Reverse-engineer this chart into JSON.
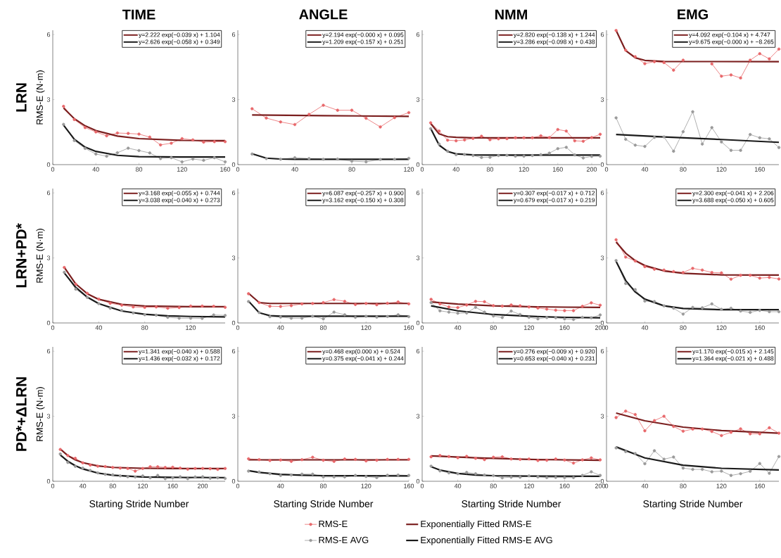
{
  "chart_data": [
    {
      "type": "line",
      "title": "TIME",
      "ylabel": "RMS-E (N·m)",
      "x": [
        10,
        20,
        30,
        40,
        50,
        60,
        70,
        80,
        90,
        100,
        110,
        120,
        130,
        140,
        150,
        160
      ],
      "xlim": [
        0,
        160
      ],
      "xticks": [
        0,
        40,
        80,
        120,
        160
      ],
      "ylim": [
        0,
        6.2
      ],
      "yticks": [
        0,
        3,
        6
      ],
      "annotations": [
        "y=2.222 exp(−0.039 x) + 1.104",
        "y=2.626 exp(−0.058 x) + 0.349",
        "LRN"
      ],
      "series": [
        {
          "color": "#e8686b",
          "marker": "circle",
          "values": [
            2.69,
            2.08,
            1.71,
            1.51,
            1.33,
            1.46,
            1.44,
            1.41,
            1.27,
            0.91,
            0.99,
            1.2,
            1.14,
            1.04,
            1.06,
            1.06
          ]
        },
        {
          "color": "#7b1f1f",
          "marker": "none",
          "x": [
            10,
            20,
            30,
            40,
            60,
            80,
            120,
            160
          ],
          "values": [
            2.61,
            2.12,
            1.79,
            1.57,
            1.32,
            1.2,
            1.12,
            1.11
          ]
        },
        {
          "color": "#9a9a9a",
          "marker": "circle",
          "values": [
            1.86,
            1.11,
            0.75,
            0.49,
            0.39,
            0.55,
            0.76,
            0.65,
            0.54,
            0.28,
            0.32,
            0.13,
            0.26,
            0.2,
            0.32,
            0.13
          ]
        },
        {
          "color": "#1a1a1a",
          "marker": "none",
          "x": [
            10,
            20,
            30,
            40,
            60,
            80,
            120,
            160
          ],
          "values": [
            1.82,
            1.17,
            0.81,
            0.61,
            0.43,
            0.37,
            0.35,
            0.35
          ]
        }
      ]
    },
    {
      "type": "line",
      "title": "ANGLE",
      "x": [
        10,
        20,
        30,
        40,
        50,
        60,
        70,
        80,
        90,
        100,
        110,
        120
      ],
      "xlim": [
        0,
        120
      ],
      "xticks": [
        0,
        40,
        80,
        120
      ],
      "ylim": [
        0,
        6.2
      ],
      "yticks": [
        0,
        3,
        6
      ],
      "annotations": [
        "y=2.194 exp(−0.000 x) + 0.095",
        "y=1.209 exp(−0.157 x) + 0.251"
      ],
      "series": [
        {
          "color": "#e8686b",
          "marker": "circle",
          "values": [
            2.58,
            2.15,
            1.97,
            1.85,
            2.32,
            2.74,
            2.51,
            2.51,
            2.14,
            1.74,
            2.17,
            2.4
          ]
        },
        {
          "color": "#7b1f1f",
          "marker": "none",
          "x": [
            10,
            60,
            120
          ],
          "values": [
            2.29,
            2.26,
            2.23
          ]
        },
        {
          "color": "#9a9a9a",
          "marker": "circle",
          "values": [
            0.49,
            0.28,
            0.25,
            0.32,
            0.28,
            0.25,
            0.26,
            0.16,
            0.13,
            0.24,
            0.25,
            0.29
          ]
        },
        {
          "color": "#1a1a1a",
          "marker": "none",
          "x": [
            10,
            20,
            30,
            40,
            120
          ],
          "values": [
            0.5,
            0.3,
            0.26,
            0.25,
            0.25
          ]
        }
      ]
    },
    {
      "type": "line",
      "title": "NMM",
      "x": [
        10,
        20,
        30,
        40,
        50,
        60,
        70,
        80,
        90,
        100,
        110,
        120,
        130,
        140,
        150,
        160,
        170,
        180,
        190,
        200,
        210
      ],
      "xlim": [
        0,
        210
      ],
      "xticks": [
        0,
        40,
        80,
        120,
        160,
        200
      ],
      "ylim": [
        0,
        6.2
      ],
      "yticks": [
        0,
        3,
        6
      ],
      "annotations": [
        "y=2.820 exp(−0.138 x) + 1.244",
        "y=3.286 exp(−0.098 x) + 0.438"
      ],
      "series": [
        {
          "color": "#e8686b",
          "marker": "circle",
          "values": [
            1.93,
            1.55,
            1.13,
            1.1,
            1.14,
            1.21,
            1.31,
            1.15,
            1.19,
            1.2,
            1.24,
            1.24,
            1.24,
            1.33,
            1.25,
            1.62,
            1.55,
            1.1,
            1.08,
            1.25,
            1.4
          ]
        },
        {
          "color": "#7b1f1f",
          "marker": "none",
          "x": [
            10,
            20,
            30,
            40,
            60,
            210
          ],
          "values": [
            1.9,
            1.42,
            1.29,
            1.26,
            1.24,
            1.24
          ]
        },
        {
          "color": "#9a9a9a",
          "marker": "circle",
          "values": [
            1.66,
            0.95,
            0.62,
            0.46,
            0.47,
            0.42,
            0.33,
            0.34,
            0.42,
            0.43,
            0.39,
            0.39,
            0.42,
            0.46,
            0.53,
            0.74,
            0.8,
            0.45,
            0.31,
            0.38,
            0.39
          ]
        },
        {
          "color": "#1a1a1a",
          "marker": "none",
          "x": [
            10,
            20,
            30,
            40,
            60,
            80,
            210
          ],
          "values": [
            1.67,
            0.9,
            0.61,
            0.5,
            0.45,
            0.44,
            0.44
          ]
        }
      ]
    },
    {
      "type": "line",
      "title": "EMG",
      "x": [
        10,
        20,
        30,
        40,
        50,
        60,
        70,
        80,
        90,
        100,
        110,
        120,
        130,
        140,
        150,
        160,
        170,
        180
      ],
      "xlim": [
        0,
        180
      ],
      "xticks": [
        0,
        40,
        80,
        120,
        160
      ],
      "ylim": [
        0,
        6.2
      ],
      "yticks": [
        0,
        3,
        6
      ],
      "annotations": [
        "y=4.092 exp(−0.104 x) + 4.747",
        "y=9.675 exp(−0.000 x) + −8.265"
      ],
      "series": [
        {
          "color": "#e8686b",
          "marker": "circle",
          "values": [
            6.19,
            5.28,
            4.98,
            4.66,
            4.75,
            4.71,
            4.36,
            4.82,
            null,
            null,
            4.65,
            4.08,
            4.14,
            4.0,
            4.82,
            5.12,
            4.88,
            5.33
          ]
        },
        {
          "color": "#7b1f1f",
          "marker": "none",
          "x": [
            10,
            20,
            30,
            40,
            60,
            180
          ],
          "values": [
            6.19,
            5.26,
            4.93,
            4.81,
            4.76,
            4.75
          ]
        },
        {
          "color": "#9a9a9a",
          "marker": "circle",
          "values": [
            2.16,
            1.17,
            0.9,
            0.84,
            1.26,
            1.28,
            0.62,
            1.52,
            2.44,
            0.95,
            1.71,
            1.05,
            0.66,
            0.66,
            1.39,
            1.24,
            1.19,
            0.79
          ]
        },
        {
          "color": "#1a1a1a",
          "marker": "none",
          "x": [
            10,
            60,
            120,
            180
          ],
          "values": [
            1.39,
            1.28,
            1.16,
            1.03
          ]
        }
      ]
    },
    {
      "type": "line",
      "ylabel": "RMS-E (N·m)",
      "x": [
        10,
        20,
        30,
        40,
        50,
        60,
        70,
        80,
        90,
        100,
        110,
        120,
        130,
        140,
        150
      ],
      "xlim": [
        0,
        150
      ],
      "xticks": [
        0,
        40,
        80,
        120
      ],
      "ylim": [
        0,
        6.2
      ],
      "yticks": [
        0,
        3,
        6
      ],
      "annotations": [
        "y=3.168 exp(−0.055 x) + 0.744",
        "y=3.038 exp(−0.040 x) + 0.273",
        "LRN+PD*"
      ],
      "series": [
        {
          "color": "#e8686b",
          "marker": "circle",
          "values": [
            2.56,
            1.79,
            1.37,
            1.1,
            0.91,
            0.82,
            0.74,
            0.72,
            0.74,
            0.68,
            0.71,
            0.78,
            0.78,
            0.77,
            0.72
          ]
        },
        {
          "color": "#7b1f1f",
          "marker": "none",
          "x": [
            10,
            20,
            30,
            40,
            60,
            80,
            120,
            150
          ],
          "values": [
            2.57,
            1.8,
            1.35,
            1.09,
            0.86,
            0.78,
            0.75,
            0.75
          ]
        },
        {
          "color": "#9a9a9a",
          "marker": "circle",
          "values": [
            2.34,
            1.56,
            1.18,
            0.89,
            0.68,
            0.58,
            0.46,
            0.38,
            0.36,
            0.26,
            0.22,
            0.22,
            0.21,
            0.37,
            0.35
          ]
        },
        {
          "color": "#1a1a1a",
          "marker": "none",
          "x": [
            10,
            20,
            30,
            40,
            60,
            80,
            100,
            120,
            150
          ],
          "values": [
            2.31,
            1.64,
            1.19,
            0.89,
            0.55,
            0.4,
            0.33,
            0.3,
            0.28
          ]
        }
      ]
    },
    {
      "type": "line",
      "x": [
        10,
        20,
        30,
        40,
        50,
        60,
        70,
        80,
        90,
        100,
        110,
        120,
        130,
        140,
        150,
        160
      ],
      "xlim": [
        0,
        160
      ],
      "xticks": [
        0,
        40,
        80,
        120,
        160
      ],
      "ylim": [
        0,
        6.2
      ],
      "yticks": [
        0,
        3,
        6
      ],
      "annotations": [
        "y=6.087 exp(−0.257 x) + 0.900",
        "y=3.162 exp(−0.150 x) + 0.308"
      ],
      "series": [
        {
          "color": "#e8686b",
          "marker": "circle",
          "values": [
            1.35,
            0.94,
            0.77,
            0.76,
            0.8,
            0.88,
            0.9,
            0.94,
            1.08,
            1.0,
            0.85,
            0.9,
            0.84,
            0.91,
            0.97,
            0.88
          ]
        },
        {
          "color": "#7b1f1f",
          "marker": "none",
          "x": [
            10,
            20,
            30,
            160
          ],
          "values": [
            1.37,
            0.94,
            0.9,
            0.9
          ]
        },
        {
          "color": "#9a9a9a",
          "marker": "circle",
          "values": [
            0.99,
            0.48,
            0.29,
            0.27,
            0.22,
            0.22,
            0.31,
            0.19,
            0.5,
            0.38,
            0.26,
            0.31,
            0.27,
            0.3,
            0.38,
            0.29
          ]
        },
        {
          "color": "#1a1a1a",
          "marker": "none",
          "x": [
            10,
            20,
            30,
            40,
            160
          ],
          "values": [
            1.01,
            0.47,
            0.34,
            0.31,
            0.31
          ]
        }
      ]
    },
    {
      "type": "line",
      "x": [
        10,
        20,
        30,
        40,
        50,
        60,
        70,
        80,
        90,
        100,
        110,
        120,
        130,
        140,
        150,
        160,
        170,
        180,
        190,
        200
      ],
      "xlim": [
        0,
        200
      ],
      "xticks": [
        0,
        40,
        80,
        120,
        160,
        200
      ],
      "ylim": [
        0,
        6.2
      ],
      "yticks": [
        0,
        3,
        6
      ],
      "annotations": [
        "y=0.307 exp(−0.017 x) + 0.712",
        "y=0.679 exp(−0.017 x) + 0.219"
      ],
      "series": [
        {
          "color": "#e8686b",
          "marker": "circle",
          "values": [
            1.09,
            0.88,
            0.74,
            0.71,
            0.83,
            1.0,
            0.98,
            0.8,
            0.78,
            0.83,
            0.79,
            0.74,
            0.69,
            0.64,
            0.59,
            0.57,
            0.57,
            0.77,
            0.93,
            0.82
          ]
        },
        {
          "color": "#7b1f1f",
          "marker": "none",
          "x": [
            10,
            40,
            80,
            120,
            160,
            200
          ],
          "values": [
            0.97,
            0.87,
            0.79,
            0.75,
            0.73,
            0.72
          ]
        },
        {
          "color": "#9a9a9a",
          "marker": "circle",
          "values": [
            0.94,
            0.56,
            0.5,
            0.45,
            0.46,
            0.72,
            0.5,
            0.32,
            0.25,
            0.55,
            0.39,
            0.26,
            0.19,
            0.25,
            0.24,
            0.19,
            0.16,
            0.26,
            0.24,
            0.37
          ]
        },
        {
          "color": "#1a1a1a",
          "marker": "none",
          "x": [
            10,
            40,
            80,
            120,
            160,
            200
          ],
          "values": [
            0.79,
            0.56,
            0.39,
            0.31,
            0.26,
            0.24
          ]
        }
      ]
    },
    {
      "type": "line",
      "x": [
        10,
        20,
        30,
        40,
        50,
        60,
        70,
        80,
        90,
        100,
        110,
        120,
        130,
        140,
        150,
        160,
        170,
        180
      ],
      "xlim": [
        0,
        180
      ],
      "xticks": [
        0,
        40,
        80,
        120,
        160
      ],
      "ylim": [
        0,
        6.2
      ],
      "yticks": [
        0,
        3,
        6
      ],
      "annotations": [
        "y=2.300 exp(−0.041 x) + 2.206",
        "y=3.688 exp(−0.050 x) + 0.605"
      ],
      "series": [
        {
          "color": "#e8686b",
          "marker": "circle",
          "values": [
            3.84,
            3.04,
            2.86,
            2.6,
            2.48,
            2.44,
            2.37,
            2.33,
            2.52,
            2.44,
            2.33,
            2.31,
            2.02,
            2.2,
            2.2,
            2.07,
            2.1,
            2.03
          ]
        },
        {
          "color": "#7b1f1f",
          "marker": "none",
          "x": [
            10,
            20,
            30,
            40,
            60,
            80,
            120,
            180
          ],
          "values": [
            3.73,
            3.22,
            2.88,
            2.65,
            2.4,
            2.29,
            2.22,
            2.21
          ]
        },
        {
          "color": "#9a9a9a",
          "marker": "circle",
          "values": [
            2.88,
            1.82,
            1.54,
            1.01,
            0.99,
            0.79,
            0.68,
            0.41,
            0.72,
            0.7,
            0.88,
            0.63,
            0.68,
            0.55,
            0.49,
            0.58,
            0.52,
            0.52
          ]
        },
        {
          "color": "#1a1a1a",
          "marker": "none",
          "x": [
            10,
            20,
            30,
            40,
            60,
            80,
            120,
            180
          ],
          "values": [
            2.84,
            1.96,
            1.43,
            1.1,
            0.79,
            0.67,
            0.61,
            0.61
          ]
        }
      ]
    },
    {
      "type": "line",
      "ylabel": "RMS-E (N·m)",
      "xlabel": "Starting Stride Number",
      "x": [
        10,
        20,
        30,
        40,
        50,
        60,
        70,
        80,
        90,
        100,
        110,
        120,
        130,
        140,
        150,
        160,
        170,
        180,
        190,
        200,
        210,
        220,
        230
      ],
      "xlim": [
        0,
        230
      ],
      "xticks": [
        0,
        40,
        80,
        120,
        160,
        200
      ],
      "ylim": [
        0,
        6.2
      ],
      "yticks": [
        0,
        3,
        6
      ],
      "annotations": [
        "y=1.341 exp(−0.040 x) + 0.588",
        "y=1.436 exp(−0.032 x) + 0.172",
        "PD*+ΔLRN"
      ],
      "series": [
        {
          "color": "#e8686b",
          "marker": "circle",
          "values": [
            1.47,
            1.19,
            1.06,
            0.85,
            0.75,
            0.7,
            0.68,
            0.64,
            0.61,
            0.59,
            0.47,
            0.59,
            0.67,
            0.67,
            0.64,
            0.65,
            0.61,
            0.56,
            0.59,
            0.59,
            0.58,
            0.55,
            0.59
          ]
        },
        {
          "color": "#7b1f1f",
          "marker": "none",
          "x": [
            10,
            20,
            30,
            40,
            60,
            80,
            120,
            160,
            230
          ],
          "values": [
            1.49,
            1.19,
            0.99,
            0.86,
            0.71,
            0.64,
            0.6,
            0.59,
            0.59
          ]
        },
        {
          "color": "#9a9a9a",
          "marker": "circle",
          "values": [
            1.26,
            0.87,
            0.69,
            0.61,
            0.5,
            0.39,
            0.32,
            0.3,
            0.25,
            0.21,
            0.2,
            0.25,
            0.16,
            0.27,
            0.12,
            0.16,
            0.21,
            0.12,
            0.2,
            0.21,
            0.14,
            0.16,
            0.13
          ]
        },
        {
          "color": "#1a1a1a",
          "marker": "none",
          "x": [
            10,
            20,
            30,
            40,
            60,
            80,
            120,
            160,
            230
          ],
          "values": [
            1.21,
            0.93,
            0.72,
            0.57,
            0.38,
            0.28,
            0.2,
            0.18,
            0.17
          ]
        }
      ]
    },
    {
      "type": "line",
      "xlabel": "Starting Stride Number",
      "legend": "bottom",
      "x": [
        10,
        20,
        30,
        40,
        50,
        60,
        70,
        80,
        90,
        100,
        110,
        120,
        130,
        140,
        150,
        160
      ],
      "xlim": [
        0,
        160
      ],
      "xticks": [
        0,
        40,
        80,
        120,
        160
      ],
      "ylim": [
        0,
        6.2
      ],
      "yticks": [
        0,
        3,
        6
      ],
      "annotations": [
        "y=0.468 exp(0.000 x) + 0.524",
        "y=0.375 exp(−0.041 x) + 0.244"
      ],
      "series": [
        {
          "name": "RMS-E",
          "color": "#e8686b",
          "marker": "circle",
          "values": [
            1.04,
            1.0,
            0.96,
            0.98,
            0.92,
            1.0,
            1.11,
            0.97,
            0.92,
            1.03,
            1.01,
            0.94,
            0.97,
            1.01,
            1.01,
            1.01
          ]
        },
        {
          "name": "Exponentially Fitted RMS-E",
          "color": "#7b1f1f",
          "marker": "none",
          "x": [
            10,
            160
          ],
          "values": [
            0.99,
            0.99
          ]
        },
        {
          "name": "RMS-E AVG",
          "color": "#9a9a9a",
          "marker": "circle",
          "values": [
            0.47,
            0.43,
            0.35,
            0.27,
            0.29,
            0.33,
            0.33,
            0.2,
            0.2,
            0.2,
            0.27,
            0.22,
            0.17,
            0.28,
            0.29,
            0.27
          ]
        },
        {
          "name": "Exponentially Fitted RMS-E AVG",
          "color": "#1a1a1a",
          "marker": "none",
          "x": [
            10,
            20,
            40,
            60,
            80,
            160
          ],
          "values": [
            0.49,
            0.41,
            0.32,
            0.28,
            0.26,
            0.25
          ]
        }
      ]
    },
    {
      "type": "line",
      "xlabel": "Starting Stride Number",
      "x": [
        10,
        20,
        30,
        40,
        50,
        60,
        70,
        80,
        90,
        100,
        110,
        120,
        130,
        140,
        150,
        160,
        170,
        180,
        190,
        200
      ],
      "xlim": [
        0,
        200
      ],
      "xticks": [
        0,
        40,
        80,
        120,
        160,
        200
      ],
      "ylim": [
        0,
        6.2
      ],
      "yticks": [
        0,
        3,
        6
      ],
      "annotations": [
        "y=0.276 exp(−0.009 x) + 0.920",
        "y=0.653 exp(−0.040 x) + 0.231"
      ],
      "series": [
        {
          "color": "#e8686b",
          "marker": "circle",
          "values": [
            1.13,
            1.19,
            1.14,
            1.09,
            1.15,
            1.06,
            1.0,
            1.11,
            1.13,
            1.03,
            1.01,
            1.03,
            0.96,
            0.97,
            1.03,
            0.98,
            0.84,
            0.99,
            1.08,
            0.99
          ]
        },
        {
          "color": "#7b1f1f",
          "marker": "none",
          "x": [
            10,
            60,
            120,
            200
          ],
          "values": [
            1.17,
            1.08,
            1.01,
            0.97
          ]
        },
        {
          "color": "#9a9a9a",
          "marker": "circle",
          "values": [
            0.7,
            0.48,
            0.39,
            0.35,
            0.41,
            0.35,
            0.29,
            0.26,
            0.16,
            0.19,
            0.19,
            0.25,
            0.2,
            0.17,
            0.18,
            0.17,
            0.17,
            0.27,
            0.44,
            0.27
          ]
        },
        {
          "color": "#1a1a1a",
          "marker": "none",
          "x": [
            10,
            20,
            40,
            60,
            80,
            120,
            200
          ],
          "values": [
            0.67,
            0.52,
            0.36,
            0.29,
            0.26,
            0.24,
            0.23
          ]
        }
      ]
    },
    {
      "type": "line",
      "xlabel": "Starting Stride Number",
      "x": [
        10,
        20,
        30,
        40,
        50,
        60,
        70,
        80,
        90,
        100,
        110,
        120,
        130,
        140,
        150,
        160,
        170,
        180
      ],
      "xlim": [
        0,
        180
      ],
      "xticks": [
        0,
        40,
        80,
        120,
        160
      ],
      "ylim": [
        0,
        6.2
      ],
      "yticks": [
        0,
        3,
        6
      ],
      "annotations": [
        "y=1.170 exp(−0.015 x) + 2.145",
        "y=1.364 exp(−0.021 x) + 0.488"
      ],
      "series": [
        {
          "color": "#e8686b",
          "marker": "circle",
          "values": [
            2.94,
            3.24,
            3.08,
            2.33,
            2.8,
            3.0,
            2.53,
            2.31,
            2.41,
            2.41,
            2.3,
            2.11,
            2.26,
            2.42,
            2.19,
            2.19,
            2.47,
            2.22
          ]
        },
        {
          "color": "#7b1f1f",
          "marker": "none",
          "x": [
            10,
            40,
            80,
            120,
            180
          ],
          "values": [
            3.15,
            2.79,
            2.5,
            2.34,
            2.22
          ]
        },
        {
          "color": "#9a9a9a",
          "marker": "circle",
          "values": [
            1.54,
            1.37,
            1.28,
            0.81,
            1.41,
            1.02,
            1.12,
            0.61,
            0.55,
            0.55,
            0.44,
            0.47,
            0.27,
            0.35,
            0.46,
            0.82,
            0.37,
            1.14
          ]
        },
        {
          "color": "#1a1a1a",
          "marker": "none",
          "x": [
            10,
            40,
            80,
            120,
            180
          ],
          "values": [
            1.59,
            1.08,
            0.74,
            0.6,
            0.52
          ]
        }
      ]
    }
  ]
}
